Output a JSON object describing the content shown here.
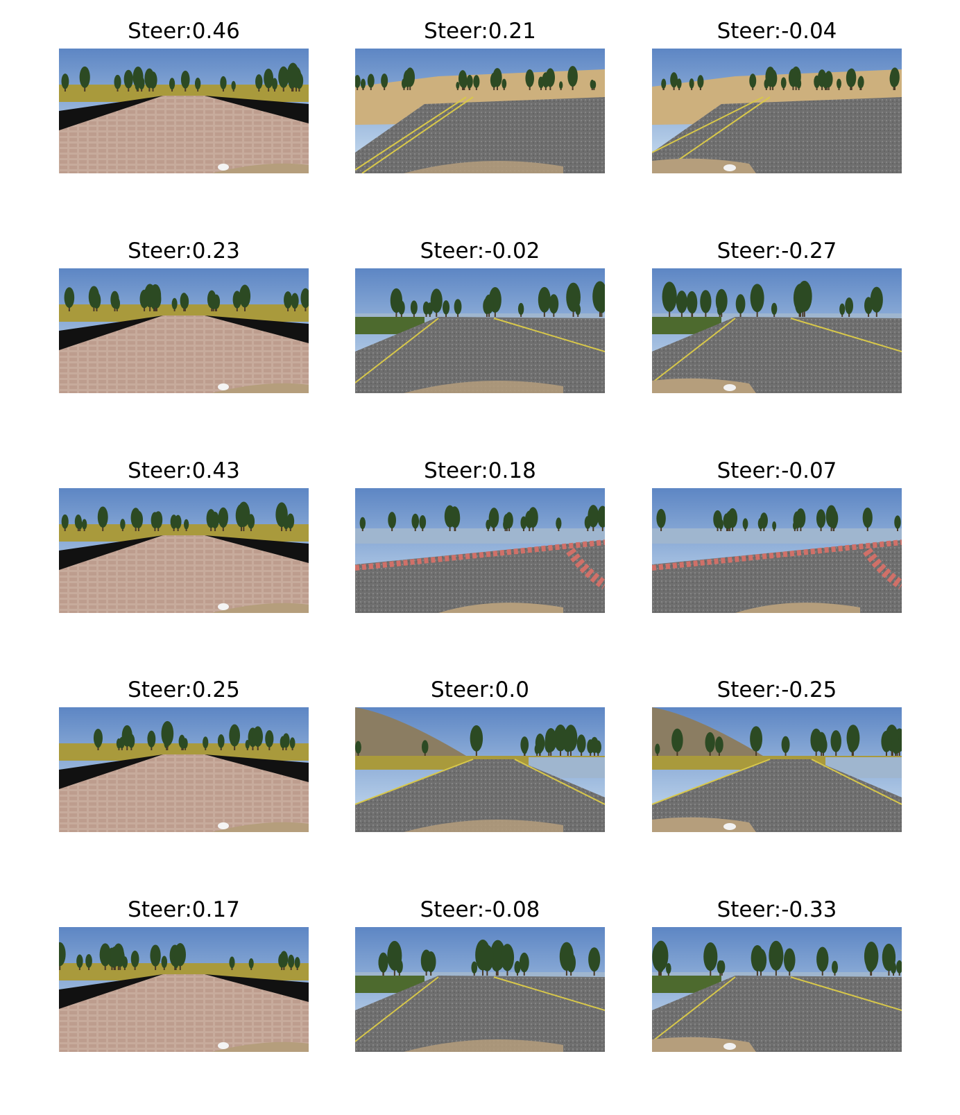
{
  "figure": {
    "rows": [
      [
        {
          "title": "Steer:0.46",
          "scene": "cobble",
          "variant": "a"
        },
        {
          "title": "Steer:0.21",
          "scene": "road-desert",
          "variant": "a"
        },
        {
          "title": "Steer:-0.04",
          "scene": "road-desert",
          "variant": "b"
        }
      ],
      [
        {
          "title": "Steer:0.23",
          "scene": "cobble",
          "variant": "a"
        },
        {
          "title": "Steer:-0.02",
          "scene": "road-lake",
          "variant": "a"
        },
        {
          "title": "Steer:-0.27",
          "scene": "road-lake",
          "variant": "b"
        }
      ],
      [
        {
          "title": "Steer:0.43",
          "scene": "cobble",
          "variant": "a"
        },
        {
          "title": "Steer:0.18",
          "scene": "road-curve",
          "variant": "a"
        },
        {
          "title": "Steer:-0.07",
          "scene": "road-curve",
          "variant": "b"
        }
      ],
      [
        {
          "title": "Steer:0.25",
          "scene": "cobble",
          "variant": "a"
        },
        {
          "title": "Steer:0.0",
          "scene": "road-hill",
          "variant": "a"
        },
        {
          "title": "Steer:-0.25",
          "scene": "road-hill",
          "variant": "b"
        }
      ],
      [
        {
          "title": "Steer:0.17",
          "scene": "cobble",
          "variant": "a"
        },
        {
          "title": "Steer:-0.08",
          "scene": "road-lake",
          "variant": "a"
        },
        {
          "title": "Steer:-0.33",
          "scene": "road-lake",
          "variant": "b"
        }
      ]
    ]
  },
  "colors": {
    "sky_top": "#5d86c4",
    "sky_bottom": "#cfe2f2",
    "cobble": "#c7ab9c",
    "asphalt": "#6f6f6f",
    "tree": "#2c4a23",
    "grass": "#a99a3c",
    "sand": "#cdb07d",
    "water": "#9fb6cf",
    "hood": "#b59e7c",
    "lane_yellow": "#d8c84a",
    "curb_red": "#d07068"
  }
}
